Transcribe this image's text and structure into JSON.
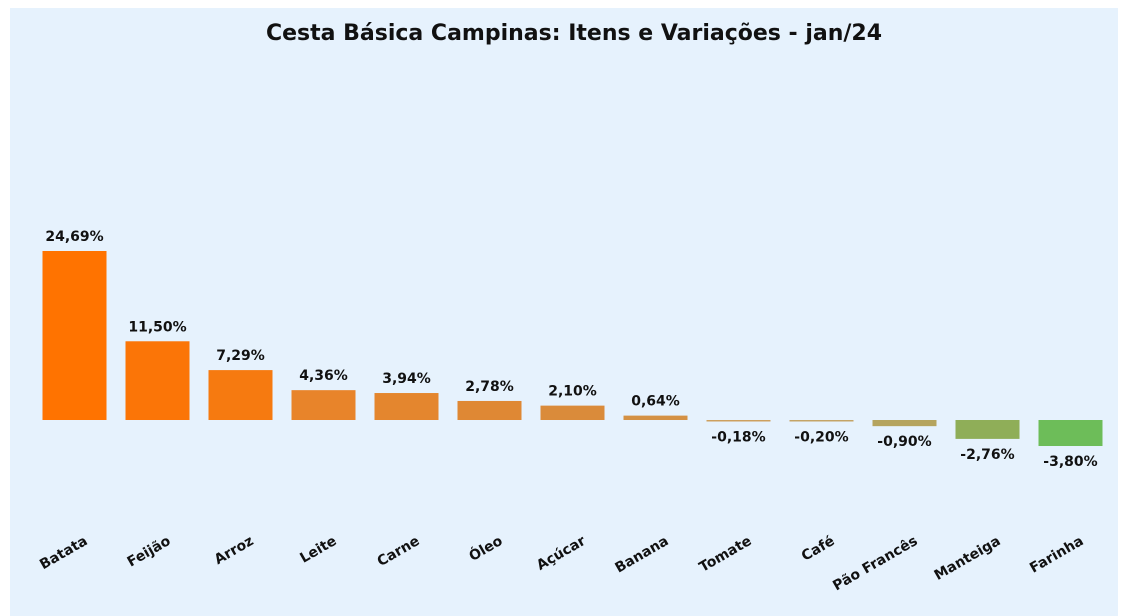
{
  "chart_data": {
    "type": "bar",
    "title": "Cesta Básica Campinas: Itens e Variações - jan/24",
    "categories": [
      "Batata",
      "Feijão",
      "Arroz",
      "Leite",
      "Carne",
      "Óleo",
      "Açúcar",
      "Banana",
      "Tomate",
      "Café",
      "Pão Francês",
      "Manteiga",
      "Farinha"
    ],
    "values": [
      24.69,
      11.5,
      7.29,
      4.36,
      3.94,
      2.78,
      2.1,
      0.64,
      -0.18,
      -0.2,
      -0.9,
      -2.76,
      -3.8
    ],
    "value_labels": [
      "24,69%",
      "11,50%",
      "7,29%",
      "4,36%",
      "3,94%",
      "2,78%",
      "2,10%",
      "0,64%",
      "-0,18%",
      "-0,20%",
      "-0,90%",
      "-2,76%",
      "-3,80%"
    ],
    "colors": [
      "#ff7300",
      "#fb7507",
      "#f67a10",
      "#e8842a",
      "#e4862e",
      "#df8834",
      "#da8b3a",
      "#d49144",
      "#cda05e",
      "#c4a466",
      "#b5a45e",
      "#8fae58",
      "#6dbd59"
    ]
  }
}
